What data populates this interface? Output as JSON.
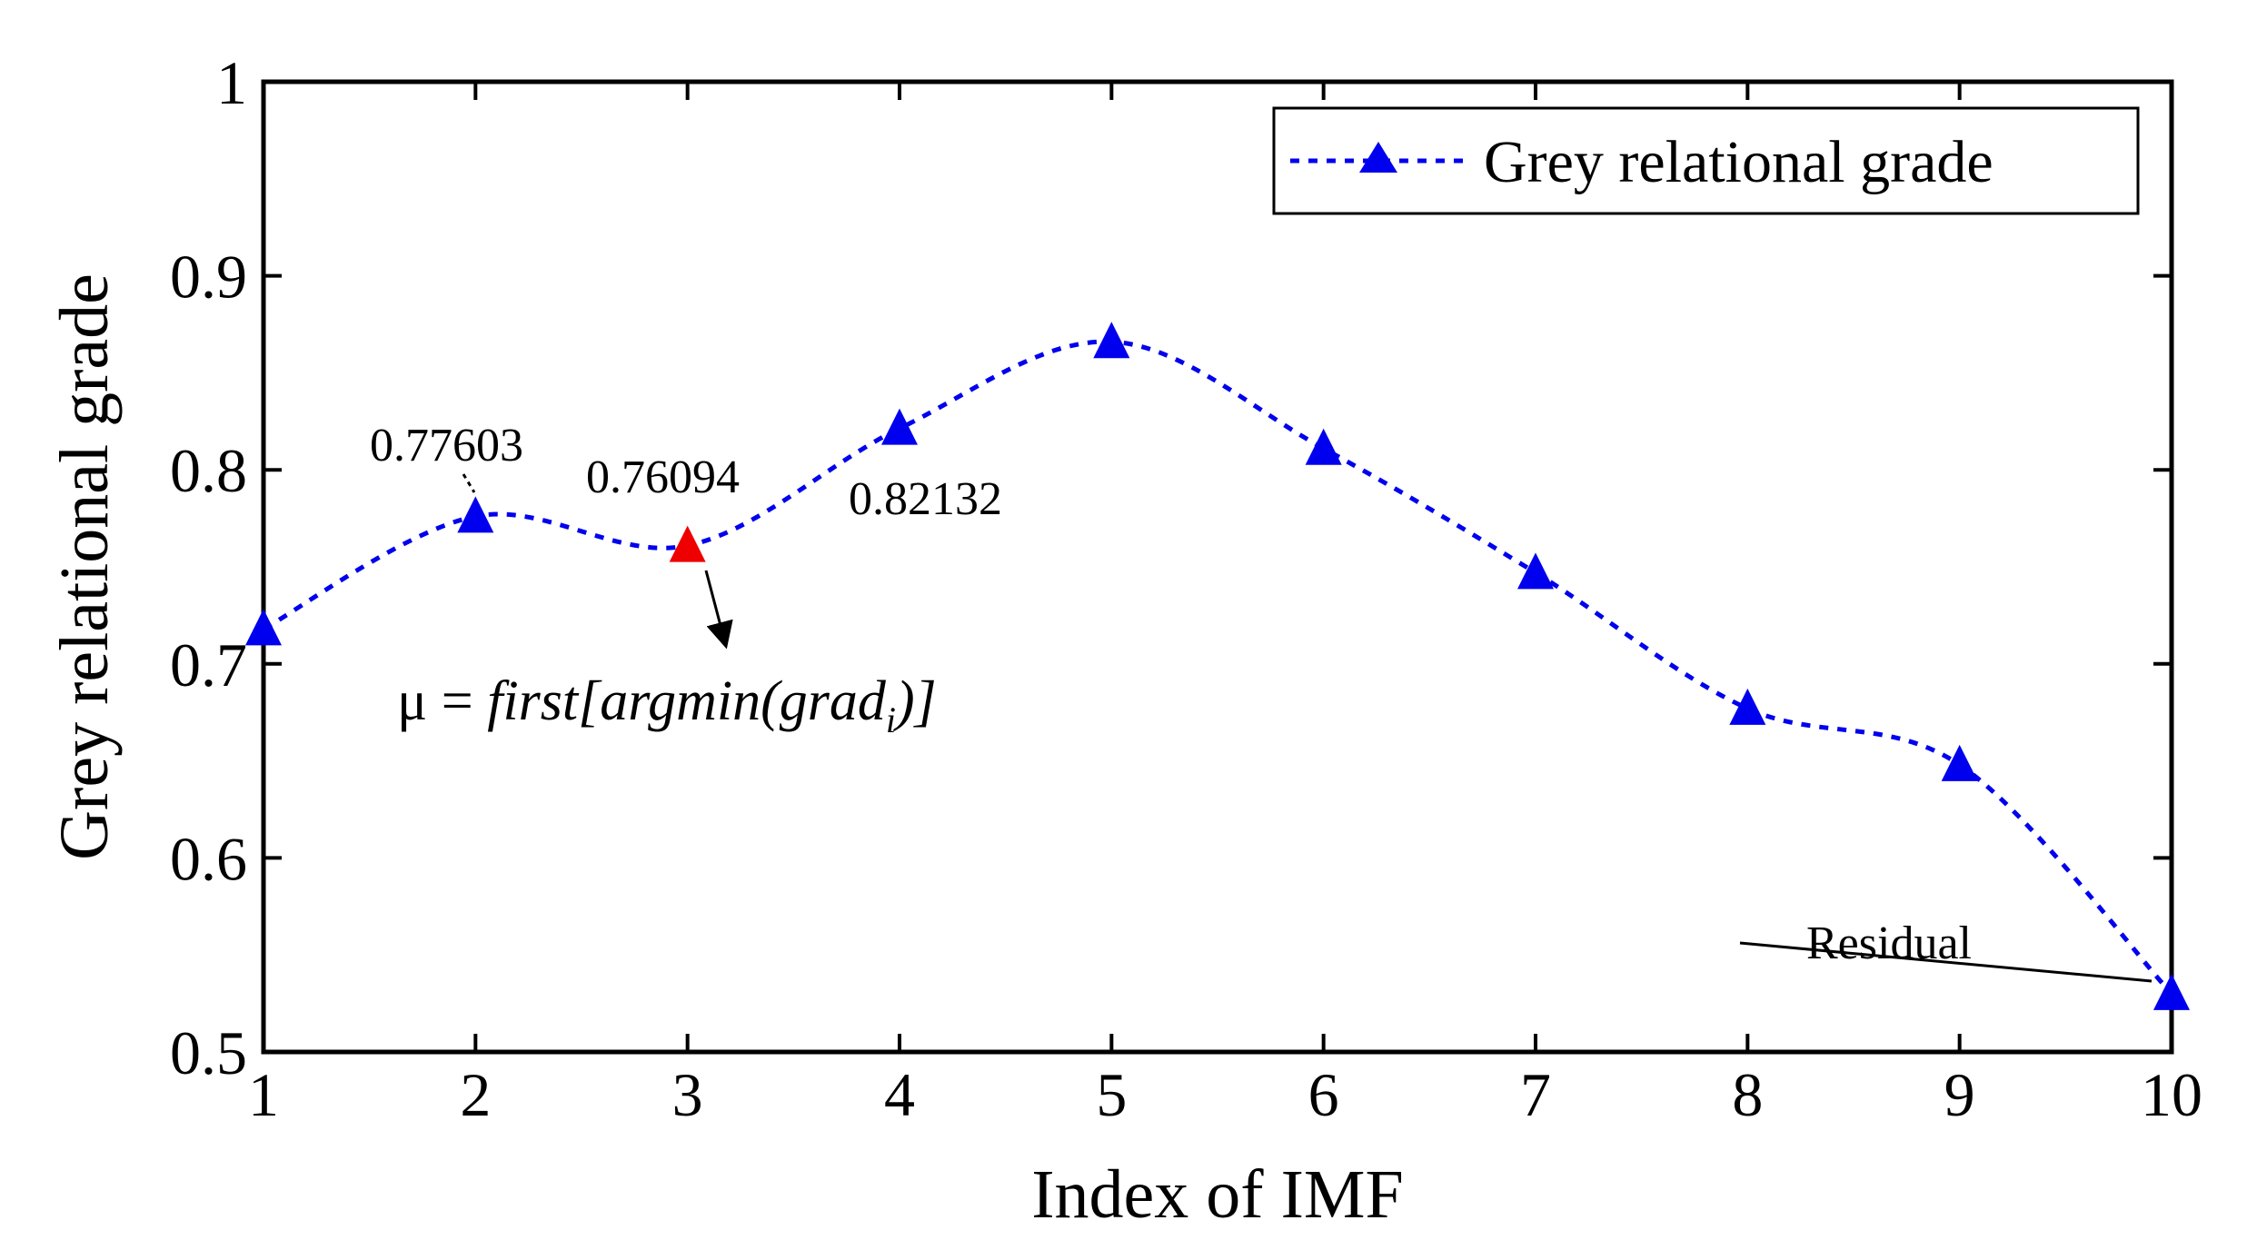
{
  "chart_data": {
    "type": "line",
    "title": "",
    "xlabel": "Index of IMF",
    "ylabel": "Grey relational grade",
    "xlim": [
      1,
      10
    ],
    "ylim": [
      0.5,
      1.0
    ],
    "x_ticks": [
      "1",
      "2",
      "3",
      "4",
      "5",
      "6",
      "7",
      "8",
      "9",
      "10"
    ],
    "y_ticks": [
      "0.5",
      "0.6",
      "0.7",
      "0.8",
      "0.9",
      "1"
    ],
    "legend": {
      "placement": "top-right",
      "entry": "Grey relational grade"
    },
    "series": [
      {
        "name": "Grey relational grade",
        "color": "#0000ee",
        "line_style": "dotted",
        "marker": "triangle",
        "x": [
          1,
          2,
          3,
          4,
          5,
          6,
          7,
          8,
          9,
          10
        ],
        "values": [
          0.718,
          0.77603,
          0.76094,
          0.82132,
          0.866,
          0.811,
          0.747,
          0.677,
          0.648,
          0.53
        ]
      }
    ],
    "highlight": {
      "x": 3,
      "color": "#ee0000"
    },
    "annotations": [
      {
        "id": "label-imf2",
        "text": "0.77603",
        "x": 2
      },
      {
        "id": "label-imf3",
        "text": "0.76094",
        "x": 3
      },
      {
        "id": "label-imf4",
        "text": "0.82132",
        "x": 4
      },
      {
        "id": "label-residual",
        "text": "Residual",
        "x": 10
      }
    ],
    "formula": {
      "mu": "μ",
      "equals": " = ",
      "body": "first[argmin(grad",
      "subscript": "i",
      "tail": ")]"
    }
  }
}
